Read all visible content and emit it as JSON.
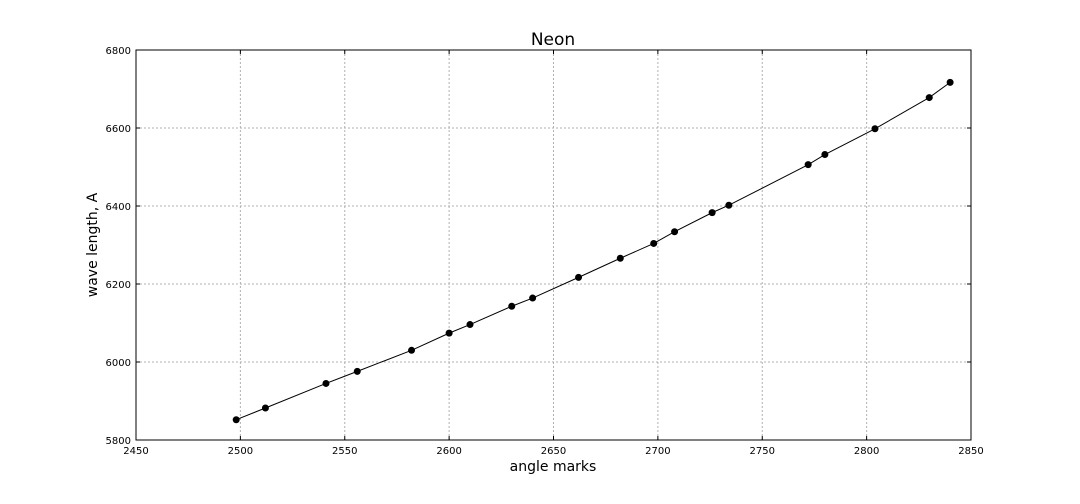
{
  "chart_data": {
    "type": "line",
    "title": "Neon",
    "xlabel": "angle marks",
    "ylabel": "wave length, A",
    "xlim": [
      2450,
      2850
    ],
    "ylim": [
      5800,
      6800
    ],
    "xticks": [
      "2450",
      "2500",
      "2550",
      "2600",
      "2650",
      "2700",
      "2750",
      "2800",
      "2850"
    ],
    "yticks": [
      "5800",
      "6000",
      "6200",
      "6400",
      "6600",
      "6800"
    ],
    "grid": true,
    "marker": "circle",
    "line_color": "#000000",
    "series": [
      {
        "x": [
          2498,
          2512,
          2541,
          2556,
          2582,
          2600,
          2610,
          2630,
          2640,
          2662,
          2682,
          2698,
          2708,
          2726,
          2734,
          2772,
          2780,
          2804,
          2830,
          2840
        ],
        "y": [
          5852,
          5882,
          5945,
          5976,
          6030,
          6074,
          6096,
          6143,
          6164,
          6217,
          6266,
          6304,
          6334,
          6383,
          6402,
          6506,
          6532,
          6598,
          6678,
          6717
        ]
      }
    ]
  }
}
